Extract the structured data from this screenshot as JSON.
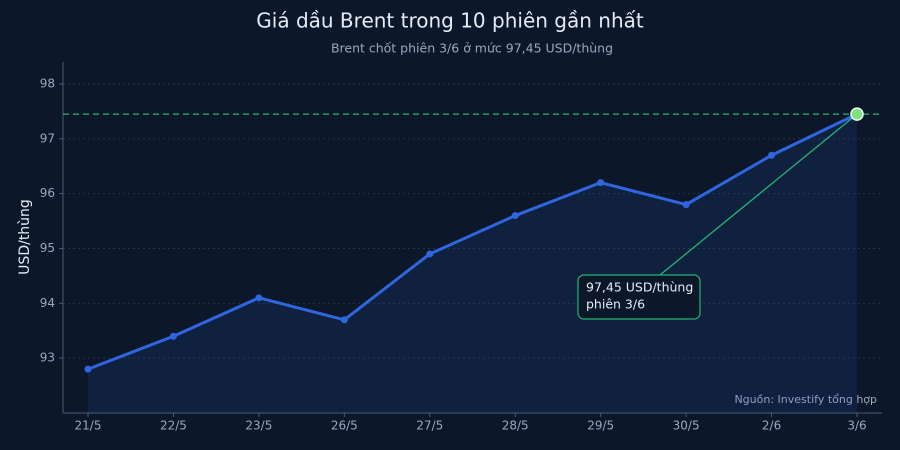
{
  "chart_data": {
    "type": "line",
    "title": "Giá dầu Brent trong 10 phiên gần nhất",
    "subtitle": "Brent chốt phiên 3/6 ở mức 97,45 USD/thùng",
    "y_label": "USD/thùng",
    "source": "Nguồn: Investify tổng hợp",
    "categories": [
      "21/5",
      "22/5",
      "23/5",
      "26/5",
      "27/5",
      "28/5",
      "29/5",
      "30/5",
      "2/6",
      "3/6"
    ],
    "series": [
      {
        "name": "Brent",
        "color": "#2f66e0",
        "values": [
          92.8,
          93.4,
          94.1,
          93.7,
          94.9,
          95.6,
          96.2,
          95.8,
          96.7,
          97.45
        ]
      }
    ],
    "ylim": [
      92,
      98.4
    ],
    "yticks": [
      93,
      94,
      95,
      96,
      97,
      98
    ],
    "grid": true,
    "reference_line": {
      "value": 97.45,
      "color": "#22b573"
    },
    "annotation": {
      "lines": [
        "97,45 USD/thùng",
        "phiên 3/6"
      ],
      "target": "3/6"
    }
  }
}
